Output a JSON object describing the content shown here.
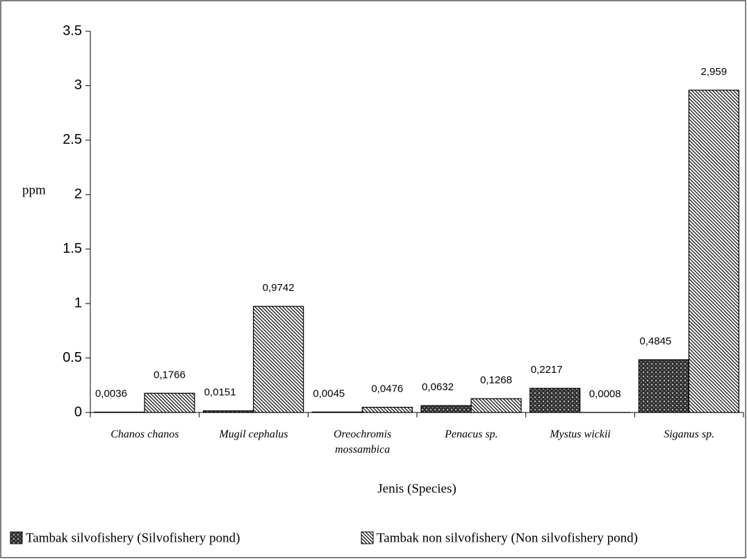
{
  "chart_data": {
    "type": "bar",
    "y_label": "ppm",
    "x_label": "Jenis (Species)",
    "categories": [
      "Chanos chanos",
      "Mugil cephalus",
      "Oreochromis mossambica",
      "Penacus sp.",
      "Mystus wickii",
      "Siganus sp."
    ],
    "series": [
      {
        "name": "Tambak silvofishery (Silvofishery pond)",
        "pattern": "crosshatch",
        "values": [
          0.0036,
          0.0151,
          0.0045,
          0.0632,
          0.2217,
          0.4845
        ],
        "value_labels": [
          "0,0036",
          "0,0151",
          "0,0045",
          "0,0632",
          "0,2217",
          "0,4845"
        ]
      },
      {
        "name": "Tambak non silvofishery (Non silvofishery pond)",
        "pattern": "diagonal",
        "values": [
          0.1766,
          0.9742,
          0.0476,
          0.1268,
          0.0008,
          2.959
        ],
        "value_labels": [
          "0,1766",
          "0,9742",
          "0,0476",
          "0,1268",
          "0,0008",
          "2,959"
        ]
      }
    ],
    "ylim": [
      0,
      3.5
    ],
    "yticks": [
      0,
      0.5,
      1,
      1.5,
      2,
      2.5,
      3,
      3.5
    ],
    "grid": false
  }
}
